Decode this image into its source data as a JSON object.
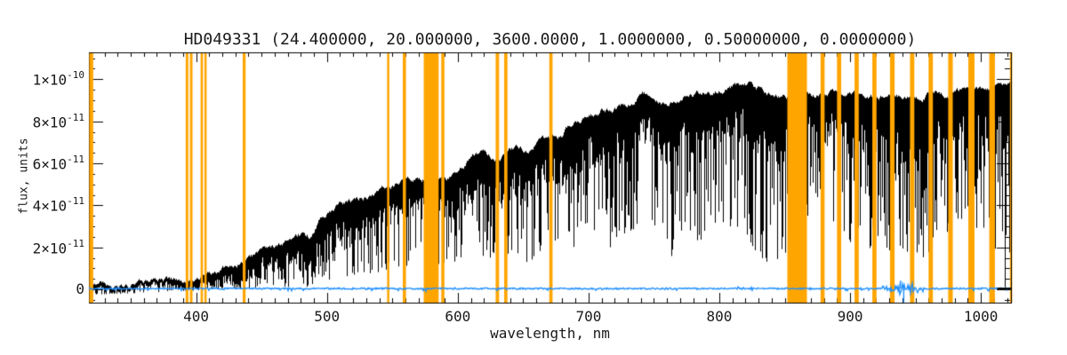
{
  "chart_data": {
    "type": "line",
    "title": "HD049331   (24.400000, 20.000000, 3600.0000, 1.0000000, 0.50000000, 0.0000000)",
    "xlabel": "wavelength, nm",
    "ylabel": "flux, units",
    "x_range": [
      318,
      1023
    ],
    "y_range_1e11": [
      -0.63,
      11.28
    ],
    "x_major_ticks": [
      400,
      500,
      600,
      700,
      800,
      900,
      1000
    ],
    "x_minor_step": 10,
    "y_minor_step": 0.5,
    "y_ticks": [
      {
        "v": 0,
        "mant": "0",
        "exp": ""
      },
      {
        "v": 2,
        "mant": "2×10",
        "exp": "-11"
      },
      {
        "v": 4,
        "mant": "4×10",
        "exp": "-11"
      },
      {
        "v": 6,
        "mant": "6×10",
        "exp": "-11"
      },
      {
        "v": 8,
        "mant": "8×10",
        "exp": "-11"
      },
      {
        "v": 10,
        "mant": "1×10",
        "exp": "-10"
      }
    ],
    "legend": "none",
    "grid": false,
    "colors": {
      "mask_band": "#FFA500",
      "spectrum": "#000000",
      "noise_trace": "#1E8FFF",
      "axis": "#000000",
      "text": "#1A1A1A"
    },
    "mask_bands_nm": [
      [
        318.3,
        321.3
      ],
      [
        392,
        394
      ],
      [
        395.2,
        397.2
      ],
      [
        403.4,
        405.2
      ],
      [
        406.3,
        407.8
      ],
      [
        435.6,
        437.8
      ],
      [
        546,
        547.6
      ],
      [
        558,
        560.4
      ],
      [
        574,
        585.4
      ],
      [
        587.4,
        589.8
      ],
      [
        629,
        631.6
      ],
      [
        635.5,
        638
      ],
      [
        670,
        672.5
      ],
      [
        852,
        867
      ],
      [
        877.4,
        880.5
      ],
      [
        890,
        893.2
      ],
      [
        903.4,
        906.6
      ],
      [
        917,
        920.2
      ],
      [
        930.5,
        934
      ],
      [
        945.8,
        949.1
      ],
      [
        960,
        963.3
      ],
      [
        975,
        978.5
      ],
      [
        990.4,
        995.1
      ],
      [
        1006.4,
        1010.7
      ],
      [
        1022.2,
        1023
      ]
    ],
    "envelope_fields": [
      "lambda_nm",
      "top_1e11",
      "band_thickness_1e11",
      "spike_min_1e11",
      "spike_probability"
    ],
    "envelope_keypoints": [
      [
        318,
        0.18,
        0.3,
        -0.25,
        0.5
      ],
      [
        350,
        0.22,
        0.3,
        -0.2,
        0.5
      ],
      [
        380,
        0.4,
        0.4,
        -0.1,
        0.45
      ],
      [
        395,
        0.55,
        0.5,
        -0.05,
        0.45
      ],
      [
        410,
        0.85,
        0.7,
        0.0,
        0.4
      ],
      [
        425,
        1.15,
        0.9,
        0.05,
        0.4
      ],
      [
        437,
        1.45,
        1.1,
        0.05,
        0.45
      ],
      [
        450,
        1.75,
        1.2,
        0.1,
        0.45
      ],
      [
        465,
        2.1,
        1.4,
        0.1,
        0.45
      ],
      [
        478,
        2.65,
        1.6,
        0.15,
        0.45
      ],
      [
        486,
        2.5,
        1.8,
        0.1,
        0.5
      ],
      [
        495,
        3.55,
        2.0,
        0.4,
        0.45
      ],
      [
        505,
        3.9,
        2.2,
        0.5,
        0.4
      ],
      [
        515,
        4.15,
        2.3,
        0.6,
        0.4
      ],
      [
        525,
        4.3,
        2.2,
        0.7,
        0.4
      ],
      [
        538,
        4.65,
        2.1,
        0.8,
        0.4
      ],
      [
        548,
        4.95,
        2.0,
        1.0,
        0.38
      ],
      [
        558,
        5.05,
        1.9,
        1.1,
        0.38
      ],
      [
        570,
        5.15,
        1.9,
        1.2,
        0.38
      ],
      [
        586,
        5.3,
        2.0,
        1.1,
        0.4
      ],
      [
        591,
        5.15,
        2.2,
        0.9,
        0.42
      ],
      [
        600,
        5.7,
        2.3,
        1.3,
        0.4
      ],
      [
        610,
        6.3,
        2.4,
        1.5,
        0.4
      ],
      [
        617,
        6.5,
        2.4,
        1.5,
        0.4
      ],
      [
        623,
        6.3,
        2.6,
        1.4,
        0.45
      ],
      [
        630,
        6.35,
        2.5,
        1.5,
        0.42
      ],
      [
        640,
        6.65,
        2.5,
        1.6,
        0.42
      ],
      [
        648,
        6.8,
        2.5,
        1.5,
        0.45
      ],
      [
        654,
        6.55,
        2.9,
        1.2,
        0.5
      ],
      [
        660,
        6.9,
        2.6,
        1.6,
        0.45
      ],
      [
        670,
        7.15,
        2.5,
        1.8,
        0.42
      ],
      [
        680,
        7.3,
        2.5,
        2.0,
        0.42
      ],
      [
        687,
        7.9,
        3.2,
        1.3,
        0.55
      ],
      [
        694,
        8.1,
        2.6,
        2.5,
        0.45
      ],
      [
        702,
        8.3,
        2.5,
        2.8,
        0.45
      ],
      [
        710,
        8.6,
        2.6,
        2.6,
        0.45
      ],
      [
        718,
        8.5,
        3.0,
        1.8,
        0.55
      ],
      [
        726,
        8.7,
        2.7,
        2.6,
        0.45
      ],
      [
        733,
        8.9,
        2.6,
        2.8,
        0.45
      ],
      [
        740,
        9.2,
        2.5,
        3.0,
        0.42
      ],
      [
        748,
        9.35,
        2.5,
        3.0,
        0.42
      ],
      [
        755,
        9.1,
        2.8,
        2.2,
        0.5
      ],
      [
        761,
        8.7,
        3.4,
        1.2,
        0.65
      ],
      [
        766,
        9.0,
        3.0,
        2.0,
        0.55
      ],
      [
        772,
        9.2,
        2.7,
        3.0,
        0.45
      ],
      [
        780,
        9.3,
        2.8,
        2.6,
        0.5
      ],
      [
        786,
        9.4,
        3.0,
        2.0,
        0.55
      ],
      [
        793,
        9.3,
        2.8,
        2.8,
        0.45
      ],
      [
        800,
        9.5,
        2.6,
        3.2,
        0.45
      ],
      [
        808,
        9.6,
        2.7,
        3.0,
        0.45
      ],
      [
        816,
        9.75,
        2.8,
        2.8,
        0.5
      ],
      [
        822,
        9.8,
        3.0,
        2.2,
        0.55
      ],
      [
        828,
        9.6,
        3.2,
        1.8,
        0.6
      ],
      [
        835,
        9.4,
        3.5,
        1.3,
        0.65
      ],
      [
        842,
        9.3,
        3.8,
        1.4,
        0.7
      ],
      [
        848,
        9.2,
        4.0,
        1.5,
        0.7
      ],
      [
        856,
        9.2,
        3.0,
        2.0,
        0.5
      ],
      [
        867,
        9.1,
        2.8,
        3.5,
        0.5
      ],
      [
        877,
        9.3,
        2.8,
        3.5,
        0.5
      ],
      [
        888,
        9.3,
        2.8,
        3.2,
        0.5
      ],
      [
        895,
        9.25,
        3.0,
        2.8,
        0.5
      ],
      [
        901,
        9.3,
        3.2,
        2.0,
        0.55
      ],
      [
        908,
        9.25,
        3.0,
        2.5,
        0.5
      ],
      [
        913,
        9.3,
        3.2,
        2.0,
        0.55
      ],
      [
        920,
        9.25,
        3.4,
        1.8,
        0.6
      ],
      [
        926,
        9.2,
        3.6,
        1.5,
        0.65
      ],
      [
        934,
        9.2,
        3.8,
        1.4,
        0.7
      ],
      [
        941,
        9.15,
        4.0,
        1.3,
        0.7
      ],
      [
        948,
        9.2,
        4.0,
        1.4,
        0.7
      ],
      [
        956,
        9.25,
        3.8,
        1.5,
        0.65
      ],
      [
        963,
        9.3,
        3.4,
        2.0,
        0.6
      ],
      [
        970,
        9.35,
        3.2,
        2.4,
        0.55
      ],
      [
        978,
        9.4,
        3.0,
        2.8,
        0.5
      ],
      [
        985,
        9.45,
        3.0,
        3.0,
        0.5
      ],
      [
        992,
        9.4,
        3.2,
        2.8,
        0.5
      ],
      [
        999,
        9.5,
        3.0,
        3.0,
        0.5
      ],
      [
        1006,
        9.55,
        3.0,
        2.8,
        0.5
      ],
      [
        1012,
        9.6,
        3.2,
        1.5,
        0.55
      ],
      [
        1018,
        9.55,
        3.4,
        0.1,
        0.6
      ],
      [
        1023,
        9.6,
        3.4,
        0.0,
        0.65
      ]
    ],
    "noise_trace": {
      "baseline_1e11": 0.04,
      "jitter_1e11": 0.035,
      "bursts": [
        {
          "range": [
            757,
            764
          ],
          "amp": 0.1
        },
        {
          "range": [
            814,
            826
          ],
          "amp": 0.1
        },
        {
          "range": [
            925,
            957
          ],
          "amp": 0.42
        }
      ],
      "down_spike": {
        "lambda": 941,
        "to": -0.62
      },
      "up_spike": {
        "lambda": 938.5,
        "to": 0.42
      }
    },
    "zero_line_segment": {
      "range": [
        1012.5,
        1023
      ],
      "flux_1e11": 0.04
    },
    "seed": 49331
  }
}
